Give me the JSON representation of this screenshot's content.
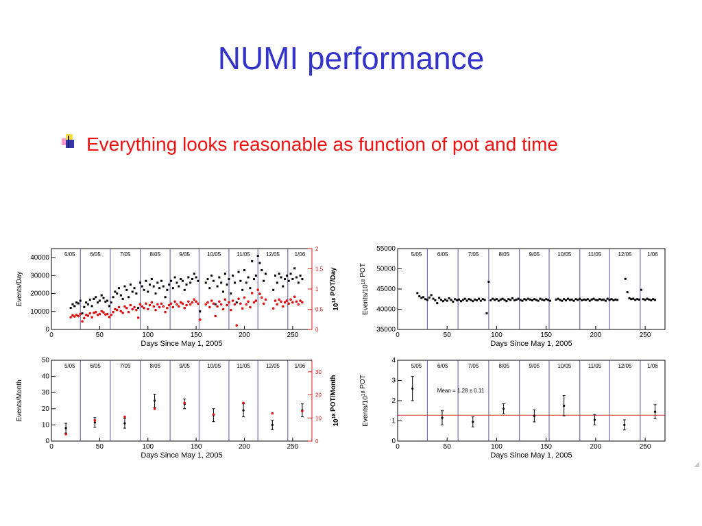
{
  "slide": {
    "title": "NUMI performance",
    "bullet_text": "Everything looks reasonable as function of pot and time",
    "bullet_icon": "square-bullet-icon"
  },
  "colors": {
    "title": "#3333cc",
    "bullet_text": "#ee1111",
    "events": "#000000",
    "pot": "#dd1111",
    "month_line": "#5555aa",
    "mean_line": "#cc3333"
  },
  "month_labels": [
    "5/05",
    "6/05",
    "7/05",
    "8/05",
    "9/05",
    "10/05",
    "11/05",
    "12/05",
    "1/06"
  ],
  "month_boundaries": [
    30,
    61,
    92,
    123,
    153,
    184,
    214,
    245
  ],
  "chart_data": [
    {
      "type": "scatter",
      "xlabel": "Days Since May 1, 2005",
      "ylabel": "Events/Day",
      "y2label": "10<sup>18</sup> POT/Day",
      "y2label_text": "1018 POT/Day",
      "xlim": [
        0,
        270
      ],
      "ylim": [
        0,
        45000
      ],
      "y2lim": [
        0,
        2
      ],
      "xticks": [
        "0",
        "50",
        "100",
        "150",
        "200",
        "250"
      ],
      "yticks": [
        "0",
        "10000",
        "20000",
        "30000",
        "40000"
      ],
      "y2ticks": [
        "0",
        "0.5",
        "1",
        "1.5",
        "2"
      ],
      "series": [
        {
          "axis": "left",
          "x": [
            20,
            22,
            24,
            26,
            28,
            30,
            32,
            34,
            36,
            38,
            40,
            42,
            44,
            46,
            48,
            50,
            52,
            54,
            56,
            58,
            60,
            62,
            64,
            66,
            68,
            70,
            72,
            74,
            76,
            78,
            80,
            82,
            84,
            86,
            88,
            90,
            92,
            94,
            96,
            98,
            100,
            102,
            104,
            106,
            108,
            110,
            112,
            114,
            116,
            118,
            120,
            122,
            124,
            126,
            128,
            130,
            132,
            134,
            136,
            138,
            140,
            142,
            144,
            146,
            148,
            150,
            152,
            154,
            160,
            162,
            164,
            166,
            168,
            170,
            172,
            174,
            176,
            178,
            180,
            182,
            184,
            186,
            188,
            190,
            192,
            194,
            196,
            198,
            200,
            202,
            204,
            206,
            208,
            210,
            212,
            214,
            216,
            218,
            220,
            222,
            230,
            232,
            234,
            236,
            238,
            240,
            242,
            244,
            246,
            248,
            250,
            252,
            254,
            256,
            258,
            260
          ],
          "values": [
            12000,
            14000,
            13000,
            15000,
            14500,
            16000,
            9000,
            12500,
            15000,
            14000,
            16500,
            13000,
            17000,
            18000,
            15000,
            16000,
            19000,
            17500,
            15500,
            16000,
            13000,
            15000,
            18000,
            21000,
            20000,
            23000,
            19000,
            17000,
            24000,
            22000,
            18000,
            25000,
            21000,
            23000,
            20000,
            12000,
            26000,
            24000,
            22000,
            27000,
            21000,
            25000,
            28000,
            24000,
            20000,
            26000,
            23000,
            27000,
            24000,
            18000,
            22000,
            25000,
            27000,
            23000,
            29000,
            26000,
            24000,
            28000,
            27000,
            22000,
            25000,
            29000,
            26000,
            28000,
            31000,
            29000,
            27000,
            10000,
            26000,
            28000,
            23000,
            30000,
            27000,
            14000,
            24000,
            29000,
            26000,
            21000,
            31000,
            25000,
            28000,
            20000,
            30000,
            26000,
            15000,
            32000,
            27000,
            22000,
            33000,
            26000,
            29000,
            23000,
            38000,
            28000,
            30000,
            41000,
            37000,
            33000,
            27000,
            31000,
            22000,
            30000,
            26000,
            31000,
            29000,
            24000,
            28000,
            30000,
            27000,
            31000,
            28000,
            34000,
            29000,
            26000,
            30000,
            28000
          ]
        },
        {
          "axis": "right",
          "x": [
            20,
            22,
            24,
            26,
            28,
            30,
            32,
            34,
            36,
            38,
            40,
            42,
            44,
            46,
            48,
            50,
            52,
            54,
            56,
            58,
            60,
            62,
            64,
            66,
            68,
            70,
            72,
            74,
            76,
            78,
            80,
            82,
            84,
            86,
            88,
            90,
            92,
            94,
            96,
            98,
            100,
            102,
            104,
            106,
            108,
            110,
            112,
            114,
            116,
            118,
            120,
            122,
            124,
            126,
            128,
            130,
            132,
            134,
            136,
            138,
            140,
            142,
            144,
            146,
            148,
            150,
            152,
            154,
            160,
            162,
            164,
            166,
            168,
            170,
            172,
            174,
            176,
            178,
            180,
            182,
            184,
            186,
            188,
            190,
            192,
            194,
            196,
            198,
            200,
            202,
            204,
            206,
            208,
            210,
            212,
            214,
            216,
            218,
            220,
            222,
            230,
            232,
            234,
            236,
            238,
            240,
            242,
            244,
            246,
            248,
            250,
            252,
            254,
            256,
            258,
            260
          ],
          "values": [
            0.3,
            0.35,
            0.32,
            0.36,
            0.33,
            0.38,
            0.2,
            0.28,
            0.36,
            0.34,
            0.4,
            0.3,
            0.41,
            0.43,
            0.36,
            0.38,
            0.45,
            0.42,
            0.37,
            0.38,
            0.31,
            0.36,
            0.43,
            0.5,
            0.48,
            0.55,
            0.45,
            0.41,
            0.57,
            0.53,
            0.43,
            0.6,
            0.5,
            0.55,
            0.48,
            0.29,
            0.62,
            0.57,
            0.53,
            0.64,
            0.5,
            0.6,
            0.67,
            0.57,
            0.48,
            0.62,
            0.55,
            0.64,
            0.57,
            0.43,
            0.53,
            0.6,
            0.64,
            0.55,
            0.69,
            0.62,
            0.57,
            0.67,
            0.64,
            0.53,
            0.6,
            0.69,
            0.62,
            0.67,
            0.74,
            0.69,
            0.64,
            0.24,
            0.62,
            0.67,
            0.55,
            0.71,
            0.64,
            0.33,
            0.57,
            0.69,
            0.62,
            0.5,
            0.74,
            0.6,
            0.67,
            0.48,
            0.71,
            0.62,
            0.1,
            0.76,
            0.64,
            0.52,
            0.79,
            0.62,
            0.69,
            0.55,
            0.9,
            0.67,
            0.71,
            0.98,
            0.88,
            0.79,
            0.64,
            0.74,
            0.52,
            0.71,
            0.62,
            0.74,
            0.69,
            0.57,
            0.67,
            0.71,
            0.64,
            0.74,
            0.67,
            0.81,
            0.69,
            0.62,
            0.71,
            0.67
          ]
        }
      ]
    },
    {
      "type": "scatter",
      "xlabel": "Days Since May 1, 2005",
      "ylabel": "Events/10<sup>18</sup> POT",
      "ylabel_text": "Events/1018 POT",
      "xlim": [
        0,
        270
      ],
      "ylim": [
        35000,
        55000
      ],
      "xticks": [
        "0",
        "50",
        "100",
        "150",
        "200",
        "250"
      ],
      "yticks": [
        "35000",
        "40000",
        "45000",
        "50000",
        "55000"
      ],
      "series": [
        {
          "x": [
            20,
            22,
            24,
            26,
            28,
            30,
            32,
            34,
            36,
            38,
            40,
            42,
            44,
            46,
            48,
            50,
            52,
            54,
            56,
            58,
            60,
            62,
            64,
            66,
            68,
            70,
            72,
            74,
            76,
            78,
            80,
            82,
            84,
            86,
            88,
            90,
            92,
            94,
            96,
            98,
            100,
            102,
            104,
            106,
            108,
            110,
            112,
            114,
            116,
            118,
            120,
            122,
            124,
            126,
            128,
            130,
            132,
            134,
            136,
            138,
            140,
            142,
            144,
            146,
            148,
            150,
            152,
            154,
            160,
            162,
            164,
            166,
            168,
            170,
            172,
            174,
            176,
            178,
            180,
            182,
            184,
            186,
            188,
            190,
            192,
            194,
            196,
            198,
            200,
            202,
            204,
            206,
            208,
            210,
            212,
            214,
            216,
            218,
            220,
            222,
            230,
            232,
            234,
            236,
            238,
            240,
            242,
            244,
            246,
            248,
            250,
            252,
            254,
            256,
            258,
            260
          ],
          "values": [
            44000,
            43200,
            42800,
            43000,
            42500,
            42300,
            42900,
            43500,
            42600,
            42200,
            41500,
            42800,
            42300,
            42000,
            42400,
            42100,
            42700,
            42300,
            41900,
            42500,
            42200,
            42400,
            42000,
            42300,
            42600,
            42100,
            42500,
            42300,
            42000,
            42400,
            42200,
            42600,
            42100,
            42500,
            42300,
            39000,
            46800,
            42200,
            42600,
            42300,
            42500,
            42100,
            42400,
            42600,
            42300,
            42000,
            42500,
            42300,
            42700,
            42200,
            42400,
            42600,
            42300,
            42100,
            42500,
            42300,
            42600,
            42400,
            42200,
            42500,
            42300,
            42100,
            42600,
            42400,
            42200,
            42500,
            42300,
            42100,
            42400,
            42600,
            42300,
            42100,
            42500,
            42200,
            42600,
            42300,
            42400,
            42100,
            42500,
            42300,
            42600,
            42200,
            42400,
            42300,
            42500,
            42100,
            42400,
            42600,
            42300,
            42200,
            42500,
            42300,
            42400,
            42100,
            42600,
            42300,
            42500,
            42200,
            42400,
            42300,
            47500,
            44200,
            42700,
            42500,
            42600,
            42300,
            42500,
            42400,
            44800,
            42500,
            42300,
            42600,
            42400,
            42200,
            42500,
            42300
          ]
        }
      ]
    },
    {
      "type": "scatter",
      "xlabel": "Days Since May 1, 2005",
      "ylabel": "Events/Month",
      "y2label": "10<sup>18</sup> POT/Month",
      "y2label_text": "1018 POT/Month",
      "xlim": [
        0,
        270
      ],
      "ylim": [
        0,
        50
      ],
      "y2lim": [
        0,
        35
      ],
      "xticks": [
        "0",
        "50",
        "100",
        "150",
        "200",
        "250"
      ],
      "yticks": [
        "0",
        "10",
        "20",
        "30",
        "40",
        "50"
      ],
      "y2ticks": [
        "0",
        "10",
        "20",
        "30"
      ],
      "series": [
        {
          "axis": "left",
          "x": [
            15,
            45,
            76,
            107,
            138,
            168,
            199,
            229,
            260
          ],
          "values": [
            8,
            11.5,
            11,
            25,
            23,
            16,
            19,
            10,
            19
          ],
          "errors": [
            3,
            3,
            3,
            4,
            3,
            4,
            4,
            3,
            4
          ]
        },
        {
          "axis": "right",
          "x": [
            15,
            45,
            76,
            107,
            138,
            168,
            199,
            229,
            260
          ],
          "values": [
            3,
            9,
            10.5,
            14,
            16.5,
            11.5,
            16.5,
            12,
            13
          ]
        }
      ]
    },
    {
      "type": "scatter",
      "xlabel": "Days Since May 1, 2005",
      "ylabel": "Events/10<sup>18</sup> POT",
      "ylabel_text": "Events/1018 POT",
      "xlim": [
        0,
        270
      ],
      "ylim": [
        0,
        4
      ],
      "xticks": [
        "0",
        "50",
        "100",
        "150",
        "200",
        "250"
      ],
      "yticks": [
        "0",
        "1",
        "2",
        "3",
        "4"
      ],
      "annotation": "Mean = 1.28 ± 0.11",
      "mean": 1.28,
      "series": [
        {
          "x": [
            15,
            45,
            76,
            107,
            138,
            168,
            199,
            229,
            260
          ],
          "values": [
            2.6,
            1.15,
            0.95,
            1.6,
            1.25,
            1.75,
            1.05,
            0.8,
            1.45
          ],
          "errors": [
            0.6,
            0.35,
            0.25,
            0.25,
            0.3,
            0.5,
            0.25,
            0.25,
            0.35
          ]
        }
      ]
    }
  ]
}
